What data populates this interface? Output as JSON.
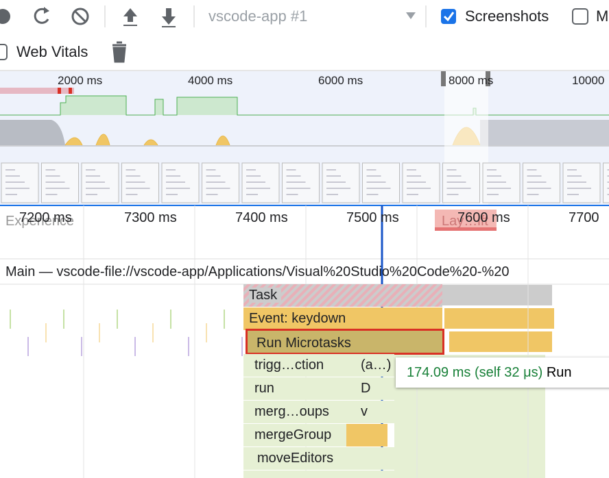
{
  "toolbar": {
    "target": "vscode-app #1",
    "screenshots": "Screenshots",
    "memory": "M",
    "web_vitals": "Web Vitals"
  },
  "overview": {
    "ticks": [
      "2000 ms",
      "4000 ms",
      "6000 ms",
      "8000 ms",
      "10000"
    ]
  },
  "timeline": {
    "ticks": [
      "7200 ms",
      "7300 ms",
      "7400 ms",
      "7500 ms",
      "7600 ms",
      "7700"
    ],
    "experience": "Experience",
    "layout_shift": "Lay…ift"
  },
  "main": {
    "title": "Main — vscode-file://vscode-app/Applications/Visual%20Studio%20Code%20-%20"
  },
  "flame": [
    {
      "label": "Task"
    },
    {
      "label": "Event: keydown"
    },
    {
      "label": "Run Microtasks"
    },
    {
      "label": "trigg…ction",
      "detail": "(a…)"
    },
    {
      "label": "run",
      "detail": "D"
    },
    {
      "label": "merg…oups",
      "detail": "v"
    },
    {
      "label": "mergeGroup"
    },
    {
      "label": "moveEditors"
    }
  ],
  "tooltip": {
    "duration": "174.09 ms (self 32 μs)",
    "name": "Run"
  }
}
